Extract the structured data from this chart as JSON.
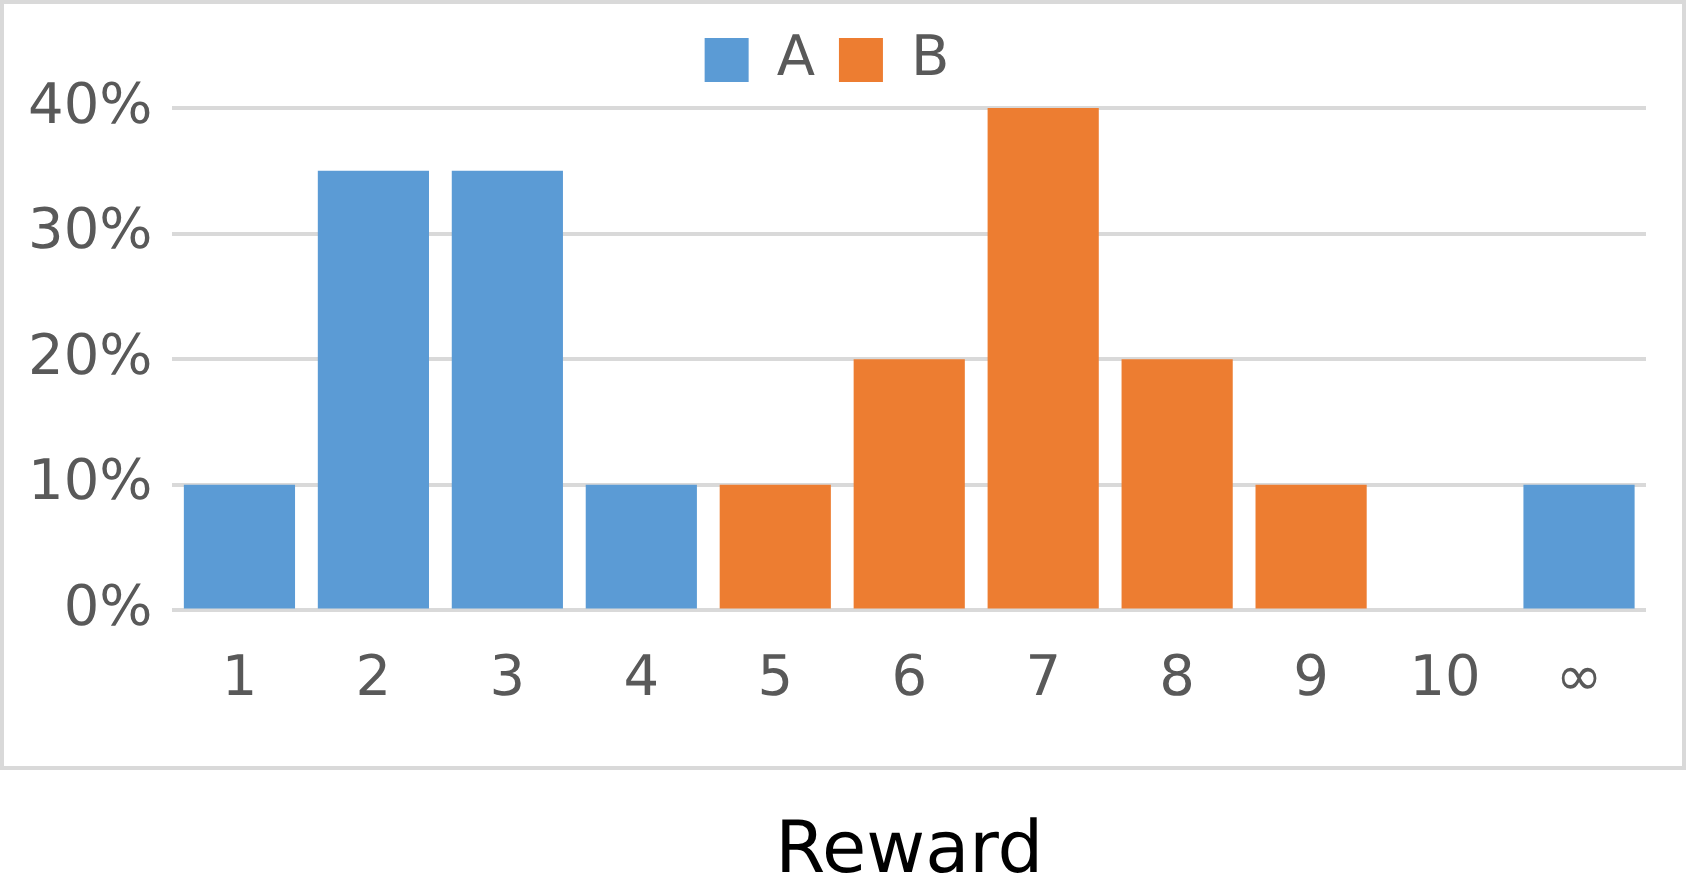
{
  "chart_data": {
    "type": "bar",
    "xlabel": "Reward",
    "categories": [
      "1",
      "2",
      "3",
      "4",
      "5",
      "6",
      "7",
      "8",
      "9",
      "10",
      "∞"
    ],
    "series": [
      {
        "name": "A",
        "color": "#5b9bd5",
        "values": [
          10,
          35,
          35,
          10,
          null,
          null,
          null,
          null,
          null,
          null,
          10
        ]
      },
      {
        "name": "B",
        "color": "#ed7d31",
        "values": [
          null,
          null,
          null,
          null,
          10,
          20,
          40,
          20,
          10,
          null,
          null
        ]
      }
    ],
    "stacked": true,
    "ylim": [
      0,
      40
    ],
    "yticks": [
      {
        "value": 0,
        "label": "0%"
      },
      {
        "value": 10,
        "label": "10%"
      },
      {
        "value": 20,
        "label": "20%"
      },
      {
        "value": 30,
        "label": "30%"
      },
      {
        "value": 40,
        "label": "40%"
      }
    ],
    "grid": "y",
    "legend": "top"
  }
}
